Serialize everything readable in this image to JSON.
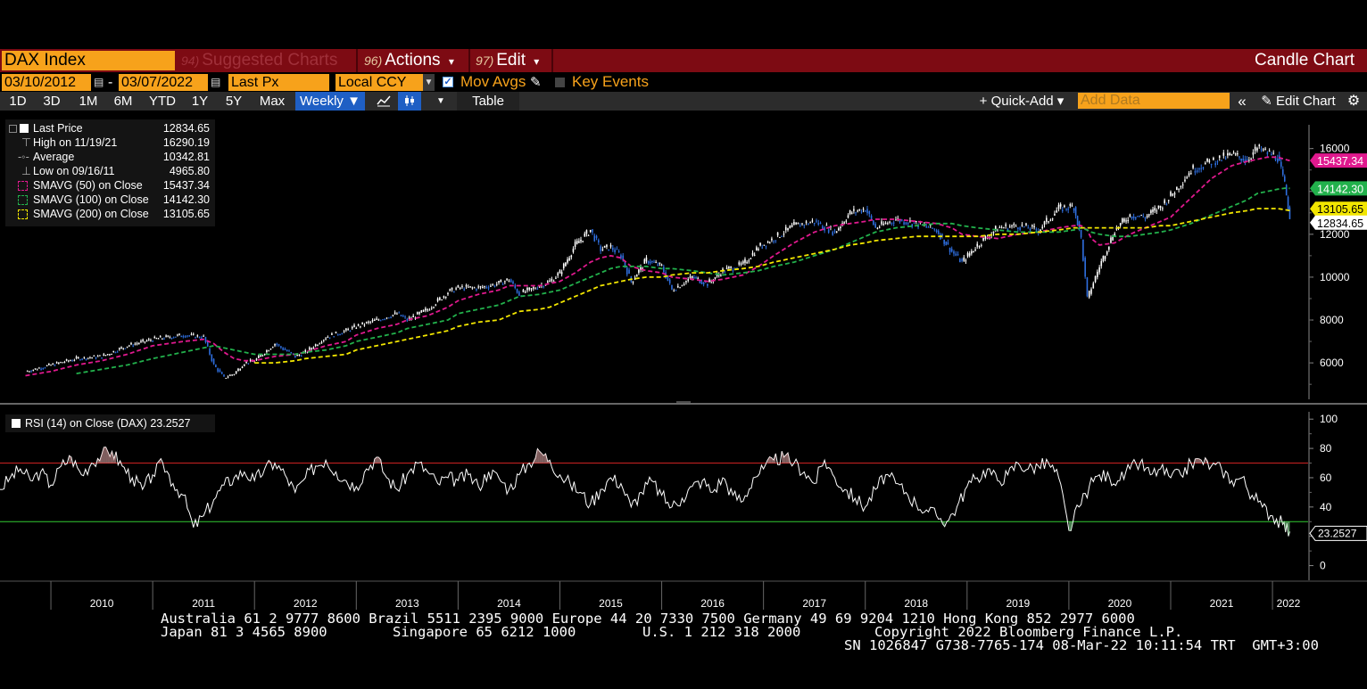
{
  "header": {
    "ticker": "DAX Index",
    "menu": [
      {
        "num": "94)",
        "label": "Suggested Charts"
      },
      {
        "num": "96)",
        "label": "Actions",
        "arrow": "▾"
      },
      {
        "num": "97)",
        "label": "Edit",
        "arrow": "▾"
      }
    ],
    "chart_type_label": "Candle Chart"
  },
  "controls": {
    "start_date": "03/10/2012",
    "end_date": "03/07/2022",
    "date_separator": "-",
    "price_field": "Last Px",
    "currency": "Local CCY",
    "mov_avgs_label": "Mov Avgs",
    "mov_avgs_checked": true,
    "key_events_label": "Key Events",
    "key_events_checked": false
  },
  "toolbar": {
    "periods": [
      "1D",
      "3D",
      "1M",
      "6M",
      "YTD",
      "1Y",
      "5Y",
      "Max"
    ],
    "frequency": "Weekly ▼",
    "table_label": "Table",
    "quick_add_label": "+ Quick-Add ▾",
    "add_data_placeholder": "Add Data",
    "edit_chart_label": "Edit Chart"
  },
  "legend": [
    {
      "label": "Last Price",
      "value": "12834.65",
      "symbol": "square-white"
    },
    {
      "label": "High on 11/19/21",
      "value": "16290.19",
      "symbol": "high-tick"
    },
    {
      "label": "Average",
      "value": "10342.81",
      "symbol": "average-line"
    },
    {
      "label": "Low on 09/16/11",
      "value": "4965.80",
      "symbol": "low-tick"
    },
    {
      "label": "SMAVG (50)  on Close",
      "value": "15437.34",
      "symbol": "dash-magenta"
    },
    {
      "label": "SMAVG (100)  on Close",
      "value": "14142.30",
      "symbol": "dash-green"
    },
    {
      "label": "SMAVG (200)  on Close",
      "value": "13105.65",
      "symbol": "dash-yellow"
    }
  ],
  "rsi_legend": {
    "label": "RSI (14)  on Close (DAX) 23.2527"
  },
  "price_tags": [
    {
      "value": "15437.34",
      "color": "#e0198e"
    },
    {
      "value": "14142.30",
      "color": "#22b14c"
    },
    {
      "value": "13105.65",
      "color": "#f2e600"
    },
    {
      "value": "12834.65",
      "color": "#ffffff"
    }
  ],
  "rsi_tag": {
    "value": "23.2527"
  },
  "colors": {
    "price": "#ffffff",
    "candle_down": "#2f6fe0",
    "sma50": "#e0198e",
    "sma100": "#22b14c",
    "sma200": "#f2e600",
    "overbought": "#cc2222",
    "oversold": "#33cc33"
  },
  "footer": {
    "line1": "Australia 61 2 9777 8600 Brazil 5511 2395 9000 Europe 44 20 7330 7500 Germany 49 69 9204 1210 Hong Kong 852 2977 6000",
    "line2a": "Japan 81 3 4565 8900",
    "line2b": "Singapore 65 6212 1000",
    "line2c": "U.S. 1 212 318 2000",
    "line2d": "Copyright 2022 Bloomberg Finance L.P.",
    "line3": "SN 1026847 G738-7765-174 08-Mar-22 10:11:54 TRT  GMT+3:00"
  },
  "chart_data": [
    {
      "type": "line",
      "title": "",
      "x": [
        2009.75,
        2010.0,
        2010.25,
        2010.5,
        2010.75,
        2011.0,
        2011.3,
        2011.5,
        2011.6,
        2011.7,
        2011.8,
        2011.9,
        2012.0,
        2012.2,
        2012.4,
        2012.5,
        2012.7,
        2012.9,
        2013.0,
        2013.2,
        2013.4,
        2013.5,
        2013.7,
        2013.9,
        2014.0,
        2014.2,
        2014.4,
        2014.5,
        2014.6,
        2014.8,
        2014.9,
        2015.0,
        2015.15,
        2015.3,
        2015.4,
        2015.5,
        2015.6,
        2015.7,
        2015.85,
        2016.0,
        2016.1,
        2016.3,
        2016.45,
        2016.6,
        2016.8,
        2016.95,
        2017.1,
        2017.3,
        2017.5,
        2017.7,
        2017.85,
        2018.0,
        2018.1,
        2018.3,
        2018.5,
        2018.7,
        2018.85,
        2018.95,
        2019.1,
        2019.3,
        2019.5,
        2019.7,
        2019.9,
        2020.05,
        2020.12,
        2020.18,
        2020.22,
        2020.3,
        2020.45,
        2020.6,
        2020.75,
        2020.9,
        2021.0,
        2021.2,
        2021.4,
        2021.6,
        2021.75,
        2021.85,
        2021.95,
        2022.05,
        2022.12,
        2022.17
      ],
      "series": [
        {
          "name": "Last Price",
          "values": [
            5600,
            5900,
            6200,
            6300,
            6800,
            7100,
            7300,
            7200,
            5900,
            5300,
            5500,
            6000,
            6100,
            6900,
            6300,
            6500,
            7200,
            7500,
            7700,
            8000,
            8300,
            8000,
            8500,
            9300,
            9500,
            9500,
            9700,
            9900,
            9200,
            9600,
            9800,
            10200,
            11500,
            12200,
            11300,
            11400,
            11000,
            9800,
            10800,
            10500,
            9400,
            10000,
            9700,
            10300,
            10600,
            11400,
            11800,
            12400,
            12600,
            12100,
            13000,
            13200,
            12300,
            12700,
            12500,
            12200,
            11200,
            10700,
            11500,
            12300,
            12400,
            12200,
            13200,
            13300,
            11800,
            9000,
            9500,
            10500,
            12200,
            12900,
            12800,
            13300,
            13800,
            15000,
            15400,
            15700,
            15500,
            16000,
            15800,
            15600,
            14300,
            12834
          ]
        },
        {
          "name": "SMAVG (50)  on Close",
          "values": [
            5400,
            5600,
            5900,
            6100,
            6400,
            6800,
            7000,
            7100,
            6900,
            6500,
            6200,
            6100,
            6100,
            6300,
            6400,
            6500,
            6800,
            7000,
            7300,
            7600,
            7800,
            8000,
            8200,
            8600,
            8900,
            9200,
            9400,
            9600,
            9600,
            9600,
            9700,
            9800,
            10200,
            10700,
            10900,
            11000,
            10900,
            10500,
            10300,
            10200,
            10000,
            9900,
            9800,
            9900,
            10100,
            10500,
            11000,
            11600,
            12100,
            12400,
            12500,
            12600,
            12700,
            12700,
            12600,
            12500,
            12300,
            12000,
            11900,
            11800,
            12000,
            12100,
            12300,
            12400,
            12400,
            12200,
            11800,
            11500,
            11600,
            12000,
            12300,
            12600,
            12800,
            13700,
            14600,
            15200,
            15400,
            15500,
            15600,
            15600,
            15500,
            15437
          ]
        },
        {
          "name": "SMAVG (100)  on Close",
          "values": [
            null,
            null,
            5500,
            5700,
            5900,
            6200,
            6500,
            6700,
            6800,
            6700,
            6600,
            6500,
            6400,
            6400,
            6400,
            6500,
            6600,
            6800,
            7000,
            7200,
            7400,
            7600,
            7800,
            8000,
            8300,
            8500,
            8700,
            8900,
            9100,
            9200,
            9300,
            9400,
            9700,
            10000,
            10200,
            10400,
            10500,
            10500,
            10500,
            10400,
            10400,
            10300,
            10200,
            10100,
            10200,
            10300,
            10500,
            10700,
            11000,
            11300,
            11600,
            11900,
            12100,
            12300,
            12400,
            12500,
            12500,
            12400,
            12300,
            12200,
            12100,
            12100,
            12100,
            12200,
            12300,
            12200,
            12100,
            12000,
            11900,
            11900,
            12000,
            12100,
            12200,
            12500,
            12900,
            13300,
            13600,
            13900,
            14000,
            14100,
            14150,
            14142
          ]
        },
        {
          "name": "SMAVG (200)  on Close",
          "values": [
            null,
            null,
            null,
            null,
            null,
            null,
            null,
            null,
            null,
            null,
            null,
            null,
            6000,
            6000,
            6100,
            6200,
            6300,
            6400,
            6600,
            6800,
            7000,
            7100,
            7300,
            7500,
            7700,
            7900,
            8000,
            8200,
            8400,
            8500,
            8600,
            8800,
            9100,
            9400,
            9600,
            9700,
            9800,
            9900,
            10000,
            10000,
            10100,
            10200,
            10200,
            10300,
            10400,
            10500,
            10700,
            10900,
            11100,
            11300,
            11500,
            11600,
            11700,
            11800,
            11900,
            11900,
            11900,
            11900,
            11900,
            12000,
            12000,
            12100,
            12200,
            12300,
            12300,
            12300,
            12300,
            12300,
            12300,
            12300,
            12300,
            12400,
            12400,
            12600,
            12800,
            13000,
            13100,
            13200,
            13200,
            13200,
            13150,
            13105
          ]
        }
      ],
      "xlim": [
        2009.5,
        2022.35
      ],
      "ylim": [
        4300,
        16900
      ],
      "y_ticks": [
        6000,
        8000,
        10000,
        12000,
        14000,
        16000
      ],
      "x_tick_labels": [
        "2010",
        "2011",
        "2012",
        "2013",
        "2014",
        "2015",
        "2016",
        "2017",
        "2018",
        "2019",
        "2020",
        "2021",
        "2022"
      ],
      "legend_position": "top-left",
      "grid": false
    },
    {
      "type": "line",
      "title": "",
      "x": [
        2009.5,
        2009.6,
        2009.7,
        2009.8,
        2009.9,
        2010.0,
        2010.1,
        2010.2,
        2010.3,
        2010.4,
        2010.5,
        2010.6,
        2010.7,
        2010.8,
        2010.9,
        2011.0,
        2011.1,
        2011.2,
        2011.3,
        2011.4,
        2011.5,
        2011.6,
        2011.7,
        2011.8,
        2011.9,
        2012.0,
        2012.1,
        2012.2,
        2012.3,
        2012.4,
        2012.5,
        2012.6,
        2012.7,
        2012.8,
        2012.9,
        2013.0,
        2013.1,
        2013.2,
        2013.3,
        2013.4,
        2013.5,
        2013.6,
        2013.7,
        2013.8,
        2013.9,
        2014.0,
        2014.1,
        2014.2,
        2014.3,
        2014.4,
        2014.5,
        2014.6,
        2014.7,
        2014.8,
        2014.9,
        2015.0,
        2015.1,
        2015.2,
        2015.3,
        2015.4,
        2015.5,
        2015.6,
        2015.7,
        2015.8,
        2015.9,
        2016.0,
        2016.1,
        2016.2,
        2016.3,
        2016.4,
        2016.5,
        2016.6,
        2016.7,
        2016.8,
        2016.9,
        2017.0,
        2017.1,
        2017.2,
        2017.3,
        2017.4,
        2017.5,
        2017.6,
        2017.7,
        2017.8,
        2017.9,
        2018.0,
        2018.1,
        2018.2,
        2018.3,
        2018.4,
        2018.5,
        2018.6,
        2018.7,
        2018.8,
        2018.9,
        2019.0,
        2019.1,
        2019.2,
        2019.3,
        2019.4,
        2019.5,
        2019.6,
        2019.7,
        2019.8,
        2019.9,
        2020.0,
        2020.1,
        2020.2,
        2020.3,
        2020.4,
        2020.5,
        2020.6,
        2020.7,
        2020.8,
        2020.9,
        2021.0,
        2021.1,
        2021.2,
        2021.3,
        2021.4,
        2021.5,
        2021.6,
        2021.7,
        2021.8,
        2021.9,
        2022.0,
        2022.1,
        2022.17
      ],
      "series": [
        {
          "name": "RSI (14)  on Close (DAX) 23.2527",
          "values": [
            52,
            60,
            66,
            58,
            64,
            55,
            68,
            74,
            62,
            70,
            76,
            78,
            68,
            60,
            52,
            62,
            70,
            56,
            48,
            26,
            34,
            45,
            55,
            60,
            64,
            58,
            66,
            70,
            62,
            50,
            60,
            68,
            72,
            64,
            58,
            54,
            66,
            74,
            60,
            52,
            62,
            70,
            64,
            56,
            60,
            58,
            62,
            54,
            64,
            60,
            52,
            62,
            70,
            78,
            72,
            62,
            56,
            50,
            42,
            52,
            60,
            56,
            40,
            50,
            58,
            48,
            40,
            46,
            54,
            58,
            50,
            60,
            48,
            44,
            60,
            66,
            72,
            74,
            70,
            64,
            56,
            72,
            60,
            52,
            46,
            40,
            52,
            62,
            56,
            50,
            42,
            38,
            34,
            30,
            40,
            54,
            60,
            66,
            58,
            62,
            70,
            66,
            68,
            70,
            60,
            24,
            40,
            54,
            62,
            60,
            58,
            66,
            70,
            62,
            66,
            60,
            62,
            70,
            72,
            68,
            66,
            58,
            60,
            48,
            40,
            34,
            28,
            23.2527
          ]
        }
      ],
      "xlim": [
        2009.5,
        2022.35
      ],
      "ylim": [
        -10,
        105
      ],
      "y_ticks": [
        0,
        20,
        40,
        60,
        80,
        100
      ],
      "overbought": 70,
      "oversold": 30
    }
  ]
}
